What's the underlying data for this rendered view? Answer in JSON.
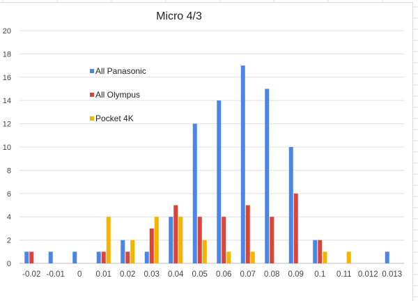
{
  "chart_data": {
    "type": "bar",
    "title": "Micro 4/3",
    "xlabel": "",
    "ylabel": "",
    "ylim": [
      0,
      20
    ],
    "yticks": [
      0,
      2,
      4,
      6,
      8,
      10,
      12,
      14,
      16,
      18,
      20
    ],
    "grid": true,
    "legend_position": "inside-top-left",
    "categories": [
      "-0.02",
      "-0.01",
      "0",
      "0.01",
      "0.02",
      "0.03",
      "0.04",
      "0.05",
      "0.06",
      "0.07",
      "0.08",
      "0.09",
      "0.1",
      "0.11",
      "0.012",
      "0.013"
    ],
    "series": [
      {
        "name": "All Panasonic",
        "color": "#4a86e8",
        "values": [
          1,
          1,
          1,
          1,
          2,
          1,
          4,
          12,
          14,
          17,
          15,
          10,
          2,
          0,
          0,
          1
        ]
      },
      {
        "name": "All Olympus",
        "color": "#db4437",
        "values": [
          1,
          0,
          0,
          1,
          1,
          3,
          5,
          4,
          4,
          5,
          4,
          6,
          2,
          0,
          0,
          0
        ]
      },
      {
        "name": "Pocket 4K",
        "color": "#f4b400",
        "values": [
          0,
          0,
          0,
          4,
          2,
          4,
          4,
          2,
          1,
          1,
          0,
          0,
          1,
          1,
          0,
          0
        ]
      }
    ]
  }
}
